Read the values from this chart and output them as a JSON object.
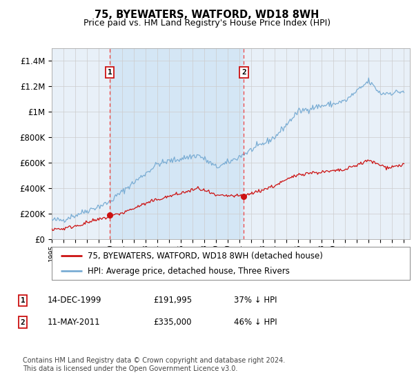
{
  "title": "75, BYEWATERS, WATFORD, WD18 8WH",
  "subtitle": "Price paid vs. HM Land Registry's House Price Index (HPI)",
  "bg_color": "#ffffff",
  "plot_bg_color": "#e8f0f8",
  "plot_bg_highlight": "#d0e4f5",
  "grid_color": "#cccccc",
  "hpi_color": "#7aadd4",
  "price_color": "#cc1111",
  "dashed_color": "#ee4444",
  "ylim": [
    0,
    1500000
  ],
  "yticks": [
    0,
    200000,
    400000,
    600000,
    800000,
    1000000,
    1200000,
    1400000
  ],
  "ytick_labels": [
    "£0",
    "£200K",
    "£400K",
    "£600K",
    "£800K",
    "£1M",
    "£1.2M",
    "£1.4M"
  ],
  "sale1_year": 1999.95,
  "sale1_price": 191995,
  "sale1_label": "1",
  "sale1_date": "14-DEC-1999",
  "sale1_text": "£191,995",
  "sale1_hpi": "37% ↓ HPI",
  "sale2_year": 2011.36,
  "sale2_price": 335000,
  "sale2_label": "2",
  "sale2_date": "11-MAY-2011",
  "sale2_text": "£335,000",
  "sale2_hpi": "46% ↓ HPI",
  "legend_line1": "75, BYEWATERS, WATFORD, WD18 8WH (detached house)",
  "legend_line2": "HPI: Average price, detached house, Three Rivers",
  "footnote": "Contains HM Land Registry data © Crown copyright and database right 2024.\nThis data is licensed under the Open Government Licence v3.0.",
  "xmin": 1995.0,
  "xmax": 2025.5
}
